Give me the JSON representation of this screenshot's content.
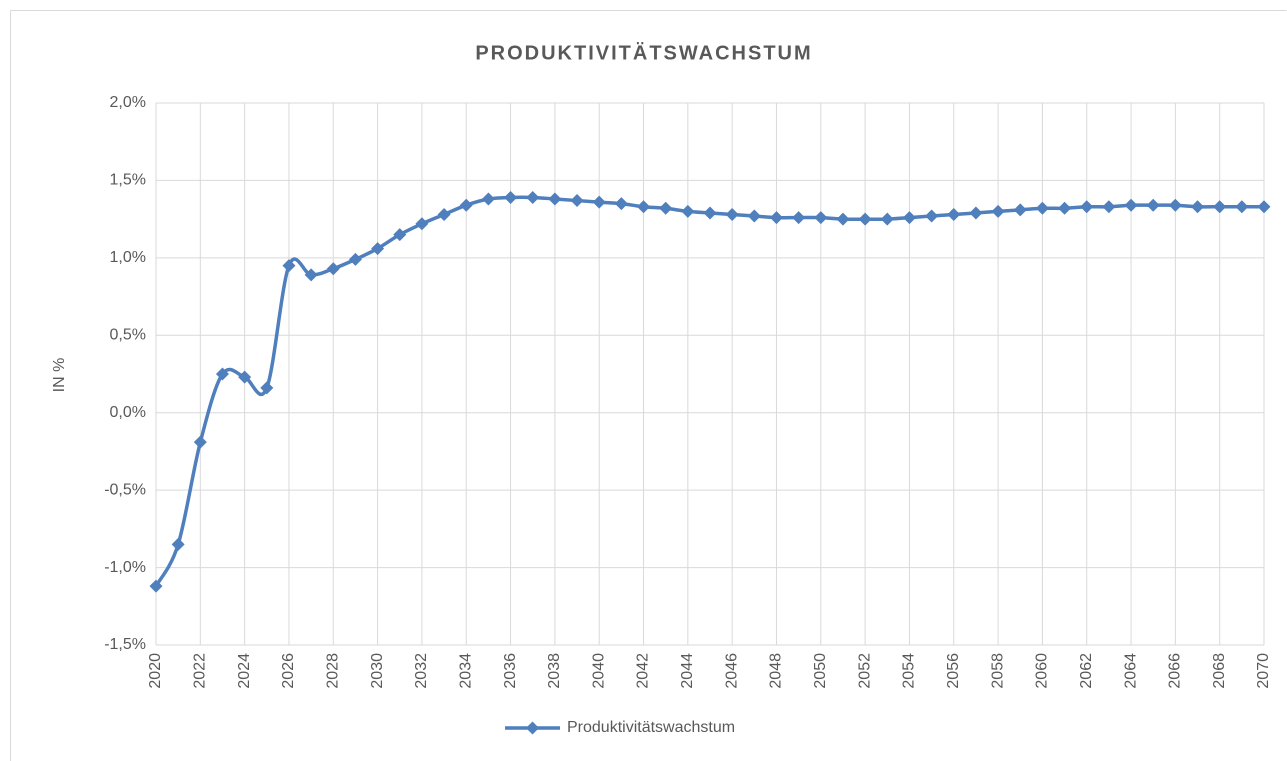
{
  "chart_data": {
    "type": "line",
    "title": "PRODUKTIVITÄTSWACHSTUM",
    "y_label": "IN %",
    "x": [
      2020,
      2021,
      2022,
      2023,
      2024,
      2025,
      2026,
      2027,
      2028,
      2029,
      2030,
      2031,
      2032,
      2033,
      2034,
      2035,
      2036,
      2037,
      2038,
      2039,
      2040,
      2041,
      2042,
      2043,
      2044,
      2045,
      2046,
      2047,
      2048,
      2049,
      2050,
      2051,
      2052,
      2053,
      2054,
      2055,
      2056,
      2057,
      2058,
      2059,
      2060,
      2061,
      2062,
      2063,
      2064,
      2065,
      2066,
      2067,
      2068,
      2069,
      2070
    ],
    "series": [
      {
        "name": "Produktivitätswachstum",
        "color": "#4f7fbc",
        "values": [
          -1.12,
          -0.85,
          -0.19,
          0.25,
          0.23,
          0.16,
          0.95,
          0.89,
          0.93,
          0.99,
          1.06,
          1.15,
          1.22,
          1.28,
          1.34,
          1.38,
          1.39,
          1.39,
          1.38,
          1.37,
          1.36,
          1.35,
          1.33,
          1.32,
          1.3,
          1.29,
          1.28,
          1.27,
          1.26,
          1.26,
          1.26,
          1.25,
          1.25,
          1.25,
          1.26,
          1.27,
          1.28,
          1.29,
          1.3,
          1.31,
          1.32,
          1.32,
          1.33,
          1.33,
          1.34,
          1.34,
          1.34,
          1.33,
          1.33,
          1.33,
          1.33
        ]
      }
    ],
    "xlim": [
      2020,
      2070
    ],
    "xticks": [
      2020,
      2022,
      2024,
      2026,
      2028,
      2030,
      2032,
      2034,
      2036,
      2038,
      2040,
      2042,
      2044,
      2046,
      2048,
      2050,
      2052,
      2054,
      2056,
      2058,
      2060,
      2062,
      2064,
      2066,
      2068,
      2070
    ],
    "ylim": [
      -1.5,
      2
    ],
    "yticks": [
      {
        "value": -1.5,
        "label": "-1,5%"
      },
      {
        "value": -1,
        "label": "-1,0%"
      },
      {
        "value": -0.5,
        "label": "-0,5%"
      },
      {
        "value": 0,
        "label": "0,0%"
      },
      {
        "value": 0.5,
        "label": "0,5%"
      },
      {
        "value": 1,
        "label": "1,0%"
      },
      {
        "value": 1.5,
        "label": "1,5%"
      },
      {
        "value": 2,
        "label": "2,0%"
      }
    ],
    "grid": true,
    "smooth": true,
    "marker": "diamond",
    "legend": "bottom"
  }
}
